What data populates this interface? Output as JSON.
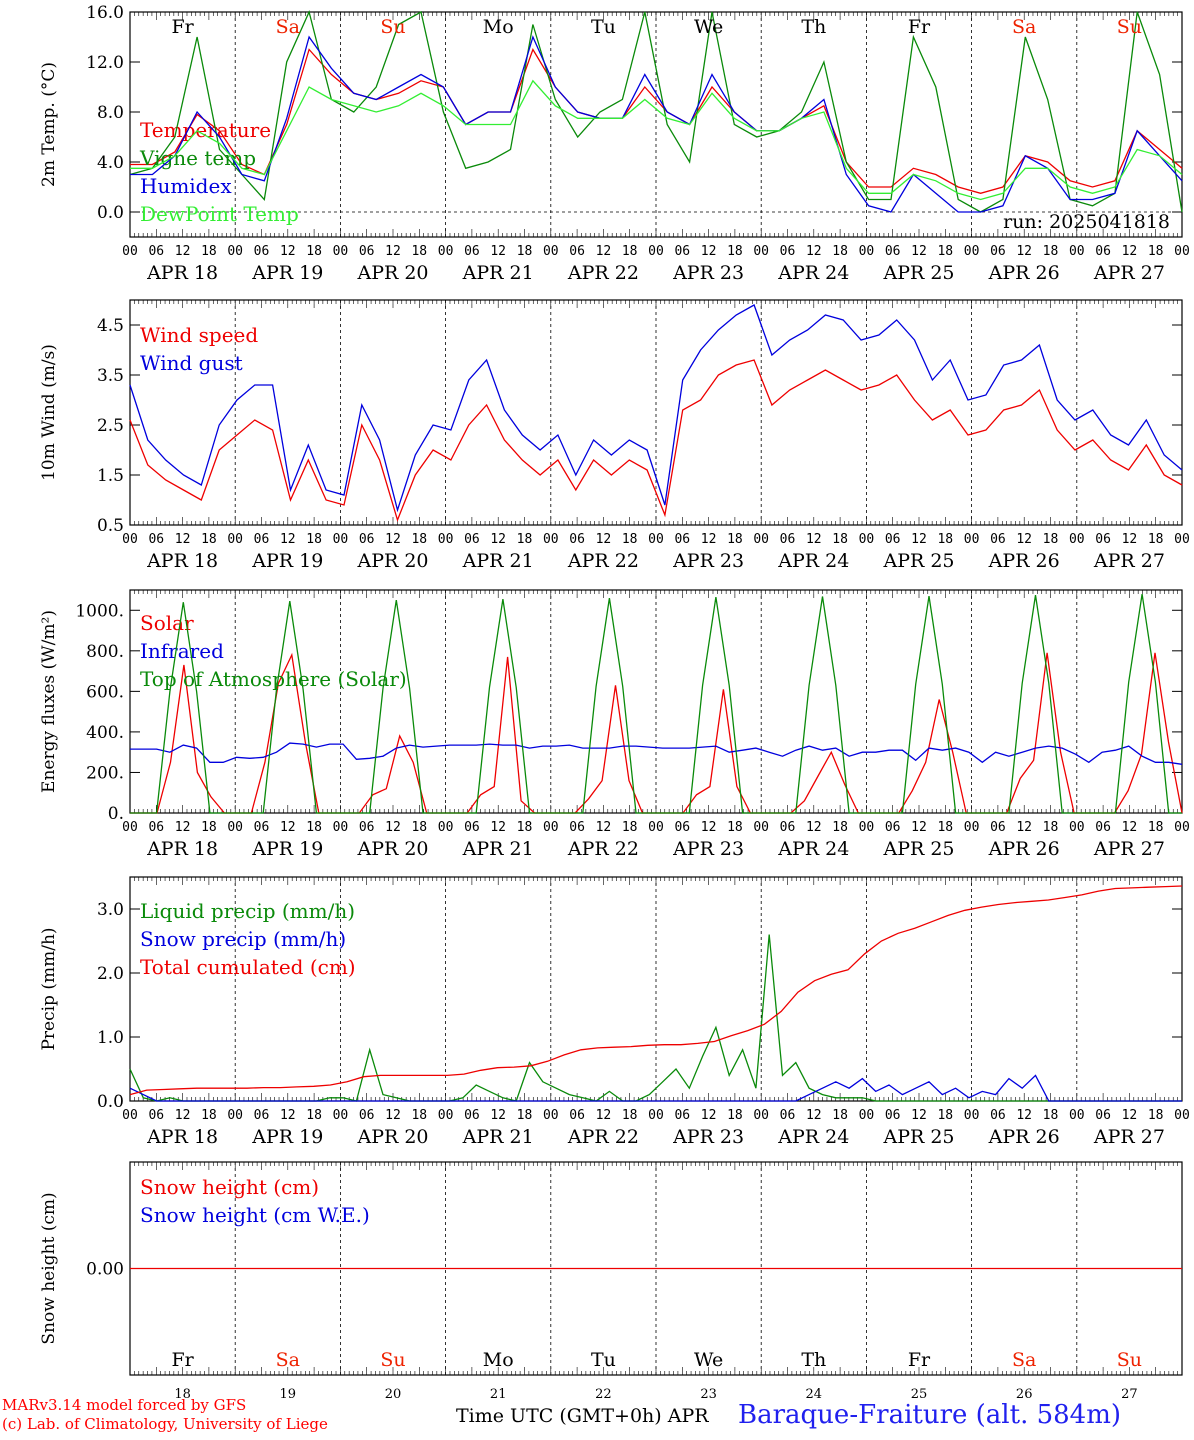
{
  "colors": {
    "red": "#ee0000",
    "green": "#0a8a0a",
    "blue": "#0000dd",
    "lightgreen": "#33ee33",
    "weekend": "#ee2200",
    "station": "#2020ee"
  },
  "time_axis": {
    "hour_ticks": [
      "00",
      "06",
      "12",
      "18"
    ],
    "end_tick": "00",
    "day_labels": [
      "APR 18",
      "APR 19",
      "APR 20",
      "APR 21",
      "APR 22",
      "APR 23",
      "APR 24",
      "APR 25",
      "APR 26",
      "APR 27"
    ],
    "weekdays": [
      "Fr",
      "Sa",
      "Su",
      "Mo",
      "Tu",
      "We",
      "Th",
      "Fr",
      "Sa",
      "Su"
    ],
    "weekend_flags": [
      false,
      true,
      true,
      false,
      false,
      false,
      false,
      false,
      true,
      true
    ],
    "day_numbers": [
      "18",
      "19",
      "20",
      "21",
      "22",
      "23",
      "24",
      "25",
      "26",
      "27"
    ]
  },
  "footer": {
    "credits": [
      "MARv3.14 model forced by GFS",
      "(c) Lab. of Climatology, University of Liege"
    ],
    "axis_title": "Time UTC (GMT+0h) APR",
    "station": "Baraque-Fraiture (alt. 584m)"
  },
  "chart_data": [
    {
      "type": "line",
      "ylabel": "2m Temp. (°C)",
      "ylim": [
        -2,
        16
      ],
      "yticks": [
        0,
        4,
        8,
        12,
        16
      ],
      "ytick_labels": [
        "0.0",
        "4.0",
        "8.0",
        "12.0",
        "16.0"
      ],
      "annotation": "run: 2025041818",
      "x_step_hours": 6,
      "series": [
        {
          "name": "Temperature",
          "color": "red",
          "values": [
            3.8,
            3.8,
            4.8,
            7.8,
            6.5,
            3.8,
            3.0,
            7.0,
            13.0,
            11.0,
            9.5,
            9.0,
            9.5,
            10.5,
            10.0,
            7.0,
            8.0,
            8.0,
            13.0,
            10.0,
            8.0,
            7.5,
            7.5,
            10.0,
            8.0,
            7.0,
            10.0,
            8.0,
            6.5,
            6.5,
            7.5,
            8.5,
            4.0,
            2.0,
            2.0,
            3.5,
            3.0,
            2.0,
            1.5,
            2.0,
            4.5,
            4.0,
            2.5,
            2.0,
            2.5,
            6.5,
            5.0,
            3.5
          ]
        },
        {
          "name": "Vigne temp",
          "color": "green",
          "values": [
            3.0,
            3.5,
            6.0,
            14.0,
            5.0,
            3.0,
            1.0,
            12.0,
            16.0,
            9.0,
            8.0,
            10.0,
            15.0,
            16.0,
            8.0,
            3.5,
            4.0,
            5.0,
            15.0,
            9.0,
            6.0,
            8.0,
            9.0,
            16.0,
            7.0,
            4.0,
            16.0,
            7.0,
            6.0,
            6.5,
            8.0,
            12.0,
            4.0,
            1.0,
            1.0,
            14.0,
            10.0,
            1.0,
            0.0,
            1.0,
            14.0,
            9.0,
            1.0,
            0.5,
            1.5,
            16.0,
            11.0,
            0.0
          ]
        },
        {
          "name": "Humidex",
          "color": "blue",
          "values": [
            3.0,
            3.0,
            4.5,
            8.0,
            6.0,
            3.0,
            2.5,
            7.5,
            14.0,
            11.5,
            9.5,
            9.0,
            10.0,
            11.0,
            10.0,
            7.0,
            8.0,
            8.0,
            14.0,
            10.0,
            8.0,
            7.5,
            7.5,
            11.0,
            8.0,
            7.0,
            11.0,
            8.0,
            6.5,
            6.5,
            7.5,
            9.0,
            3.0,
            0.5,
            0.0,
            3.0,
            1.5,
            0.0,
            0.0,
            0.5,
            4.5,
            3.5,
            1.0,
            1.0,
            1.5,
            6.5,
            4.5,
            2.5
          ]
        },
        {
          "name": "DewPoint Temp",
          "color": "lightgreen",
          "values": [
            3.5,
            3.5,
            4.5,
            6.5,
            5.5,
            3.5,
            3.0,
            6.5,
            10.0,
            9.0,
            8.5,
            8.0,
            8.5,
            9.5,
            8.5,
            7.0,
            7.0,
            7.0,
            10.5,
            8.5,
            7.5,
            7.5,
            7.5,
            9.0,
            7.5,
            7.0,
            9.5,
            7.5,
            6.5,
            6.5,
            7.5,
            8.0,
            3.5,
            1.5,
            1.5,
            3.0,
            2.5,
            1.5,
            1.0,
            1.5,
            3.5,
            3.5,
            2.0,
            1.5,
            2.0,
            5.0,
            4.5,
            3.0
          ]
        }
      ]
    },
    {
      "type": "line",
      "ylabel": "10m Wind (m/s)",
      "ylim": [
        0.5,
        5.0
      ],
      "yticks": [
        0.5,
        1.5,
        2.5,
        3.5,
        4.5
      ],
      "ytick_labels": [
        "0.5",
        "1.5",
        "2.5",
        "3.5",
        "4.5"
      ],
      "x_step_hours": 6,
      "series": [
        {
          "name": "Wind speed",
          "color": "red",
          "values": [
            2.6,
            1.7,
            1.4,
            1.2,
            1.0,
            2.0,
            2.3,
            2.6,
            2.4,
            1.0,
            1.8,
            1.0,
            0.9,
            2.5,
            1.8,
            0.6,
            1.5,
            2.0,
            1.8,
            2.5,
            2.9,
            2.2,
            1.8,
            1.5,
            1.8,
            1.2,
            1.8,
            1.5,
            1.8,
            1.6,
            0.7,
            2.8,
            3.0,
            3.5,
            3.7,
            3.8,
            2.9,
            3.2,
            3.4,
            3.6,
            3.4,
            3.2,
            3.3,
            3.5,
            3.0,
            2.6,
            2.8,
            2.3,
            2.4,
            2.8,
            2.9,
            3.2,
            2.4,
            2.0,
            2.2,
            1.8,
            1.6,
            2.1,
            1.5,
            1.3
          ]
        },
        {
          "name": "Wind gust",
          "color": "blue",
          "values": [
            3.3,
            2.2,
            1.8,
            1.5,
            1.3,
            2.5,
            3.0,
            3.3,
            3.3,
            1.2,
            2.1,
            1.2,
            1.1,
            2.9,
            2.2,
            0.8,
            1.9,
            2.5,
            2.4,
            3.4,
            3.8,
            2.8,
            2.3,
            2.0,
            2.3,
            1.5,
            2.2,
            1.9,
            2.2,
            2.0,
            0.9,
            3.4,
            4.0,
            4.4,
            4.7,
            4.9,
            3.9,
            4.2,
            4.4,
            4.7,
            4.6,
            4.2,
            4.3,
            4.6,
            4.2,
            3.4,
            3.8,
            3.0,
            3.1,
            3.7,
            3.8,
            4.1,
            3.0,
            2.6,
            2.8,
            2.3,
            2.1,
            2.6,
            1.9,
            1.6
          ]
        }
      ]
    },
    {
      "type": "line",
      "ylabel": "Energy fluxes (W/m²)",
      "ylim": [
        0,
        1100
      ],
      "yticks": [
        0,
        200,
        400,
        600,
        800,
        1000
      ],
      "ytick_labels": [
        "0.",
        "200.",
        "400.",
        "600.",
        "800.",
        "1000."
      ],
      "x_step_hours": 3,
      "series": [
        {
          "name": "Solar",
          "color": "red",
          "values": [
            0,
            0,
            0,
            250,
            730,
            200,
            80,
            0,
            0,
            0,
            250,
            640,
            780,
            350,
            0,
            0,
            0,
            0,
            90,
            120,
            380,
            250,
            0,
            0,
            0,
            0,
            90,
            130,
            770,
            60,
            0,
            0,
            0,
            0,
            70,
            160,
            630,
            160,
            0,
            0,
            0,
            0,
            90,
            130,
            610,
            130,
            0,
            0,
            0,
            0,
            60,
            180,
            300,
            140,
            0,
            0,
            0,
            0,
            110,
            250,
            560,
            300,
            0,
            0,
            0,
            0,
            170,
            260,
            790,
            300,
            0,
            0,
            0,
            0,
            110,
            290,
            790,
            350,
            0
          ]
        },
        {
          "name": "Infrared",
          "color": "blue",
          "values": [
            315,
            315,
            315,
            300,
            335,
            320,
            250,
            250,
            275,
            270,
            275,
            300,
            345,
            340,
            325,
            340,
            340,
            265,
            270,
            280,
            320,
            335,
            325,
            330,
            335,
            335,
            335,
            340,
            335,
            335,
            320,
            330,
            330,
            335,
            320,
            320,
            320,
            330,
            330,
            325,
            320,
            320,
            320,
            325,
            330,
            300,
            310,
            320,
            300,
            280,
            310,
            330,
            310,
            320,
            280,
            300,
            300,
            310,
            310,
            260,
            320,
            310,
            320,
            300,
            250,
            300,
            280,
            300,
            320,
            330,
            320,
            290,
            250,
            300,
            310,
            330,
            280,
            250,
            250,
            240
          ]
        },
        {
          "name": "Top of Atmosphere (Solar)",
          "color": "green",
          "values": [
            0,
            0,
            0,
            600,
            1040,
            600,
            0,
            0,
            0,
            0,
            0,
            610,
            1045,
            610,
            0,
            0,
            0,
            0,
            0,
            615,
            1050,
            615,
            0,
            0,
            0,
            0,
            0,
            620,
            1055,
            620,
            0,
            0,
            0,
            0,
            0,
            625,
            1060,
            625,
            0,
            0,
            0,
            0,
            0,
            630,
            1065,
            630,
            0,
            0,
            0,
            0,
            0,
            630,
            1068,
            630,
            0,
            0,
            0,
            0,
            0,
            635,
            1070,
            635,
            0,
            0,
            0,
            0,
            0,
            640,
            1075,
            640,
            0,
            0,
            0,
            0,
            0,
            645,
            1080,
            645,
            0,
            0
          ]
        }
      ]
    },
    {
      "type": "line",
      "ylabel": "Precip (mm/h)",
      "ylim": [
        0,
        3.5
      ],
      "yticks": [
        0,
        1.0,
        2.0,
        3.0
      ],
      "ytick_labels": [
        "0.0",
        "1.0",
        "2.0",
        "3.0"
      ],
      "x_step_hours": 3,
      "series": [
        {
          "name": "Liquid precip (mm/h)",
          "color": "green",
          "values": [
            0.5,
            0.05,
            0.0,
            0.05,
            0.0,
            0.0,
            0.0,
            0.0,
            0.0,
            0.0,
            0.0,
            0.0,
            0.0,
            0.0,
            0.0,
            0.05,
            0.05,
            0.0,
            0.8,
            0.1,
            0.05,
            0.0,
            0.0,
            0.0,
            0.0,
            0.05,
            0.25,
            0.15,
            0.05,
            0.0,
            0.6,
            0.3,
            0.2,
            0.1,
            0.05,
            0.0,
            0.15,
            0.0,
            0.0,
            0.1,
            0.3,
            0.5,
            0.2,
            0.7,
            1.15,
            0.4,
            0.8,
            0.2,
            2.6,
            0.4,
            0.6,
            0.2,
            0.1,
            0.05,
            0.05,
            0.05,
            0.0,
            0.0,
            0.0,
            0.0,
            0.0,
            0.0,
            0.0,
            0.0,
            0.0,
            0.0,
            0.0,
            0.0,
            0.0,
            0.0,
            0.0,
            0.0,
            0.0,
            0.0,
            0.0,
            0.0,
            0.0,
            0.0,
            0.0,
            0.0
          ]
        },
        {
          "name": "Snow precip (mm/h)",
          "color": "blue",
          "values": [
            0.2,
            0.1,
            0.0,
            0.0,
            0.0,
            0.0,
            0.0,
            0.0,
            0.0,
            0.0,
            0.0,
            0.0,
            0.0,
            0.0,
            0.0,
            0.0,
            0.0,
            0.0,
            0.0,
            0.0,
            0.0,
            0.0,
            0.0,
            0.0,
            0.0,
            0.0,
            0.0,
            0.0,
            0.0,
            0.0,
            0.0,
            0.0,
            0.0,
            0.0,
            0.0,
            0.0,
            0.0,
            0.0,
            0.0,
            0.0,
            0.0,
            0.0,
            0.0,
            0.0,
            0.0,
            0.0,
            0.0,
            0.0,
            0.0,
            0.0,
            0.0,
            0.1,
            0.2,
            0.3,
            0.2,
            0.35,
            0.15,
            0.25,
            0.1,
            0.2,
            0.3,
            0.1,
            0.2,
            0.05,
            0.15,
            0.1,
            0.35,
            0.2,
            0.4,
            0.0,
            0.0,
            0.0,
            0.0,
            0.0,
            0.0,
            0.0,
            0.0,
            0.0,
            0.0,
            0.0
          ]
        },
        {
          "name": "Total cumulated (cm)",
          "color": "red",
          "values": [
            0.1,
            0.17,
            0.18,
            0.19,
            0.2,
            0.2,
            0.2,
            0.2,
            0.21,
            0.21,
            0.22,
            0.23,
            0.25,
            0.3,
            0.38,
            0.4,
            0.4,
            0.4,
            0.4,
            0.4,
            0.42,
            0.48,
            0.52,
            0.53,
            0.55,
            0.62,
            0.72,
            0.8,
            0.83,
            0.84,
            0.85,
            0.87,
            0.88,
            0.88,
            0.9,
            0.93,
            1.02,
            1.1,
            1.2,
            1.4,
            1.7,
            1.88,
            1.98,
            2.05,
            2.3,
            2.5,
            2.62,
            2.7,
            2.8,
            2.9,
            2.98,
            3.03,
            3.07,
            3.1,
            3.12,
            3.14,
            3.18,
            3.22,
            3.28,
            3.32,
            3.33,
            3.34,
            3.35,
            3.36
          ]
        }
      ]
    },
    {
      "type": "line",
      "ylabel": "Snow height (cm)",
      "ylim": [
        -1,
        1
      ],
      "yticks": [
        0
      ],
      "ytick_labels": [
        "0.00"
      ],
      "x_step_hours": 6,
      "series": [
        {
          "name": "Snow height (cm)",
          "color": "red",
          "values": [
            0,
            0
          ]
        },
        {
          "name": "Snow height (cm W.E.)",
          "color": "blue",
          "values": []
        }
      ]
    }
  ]
}
